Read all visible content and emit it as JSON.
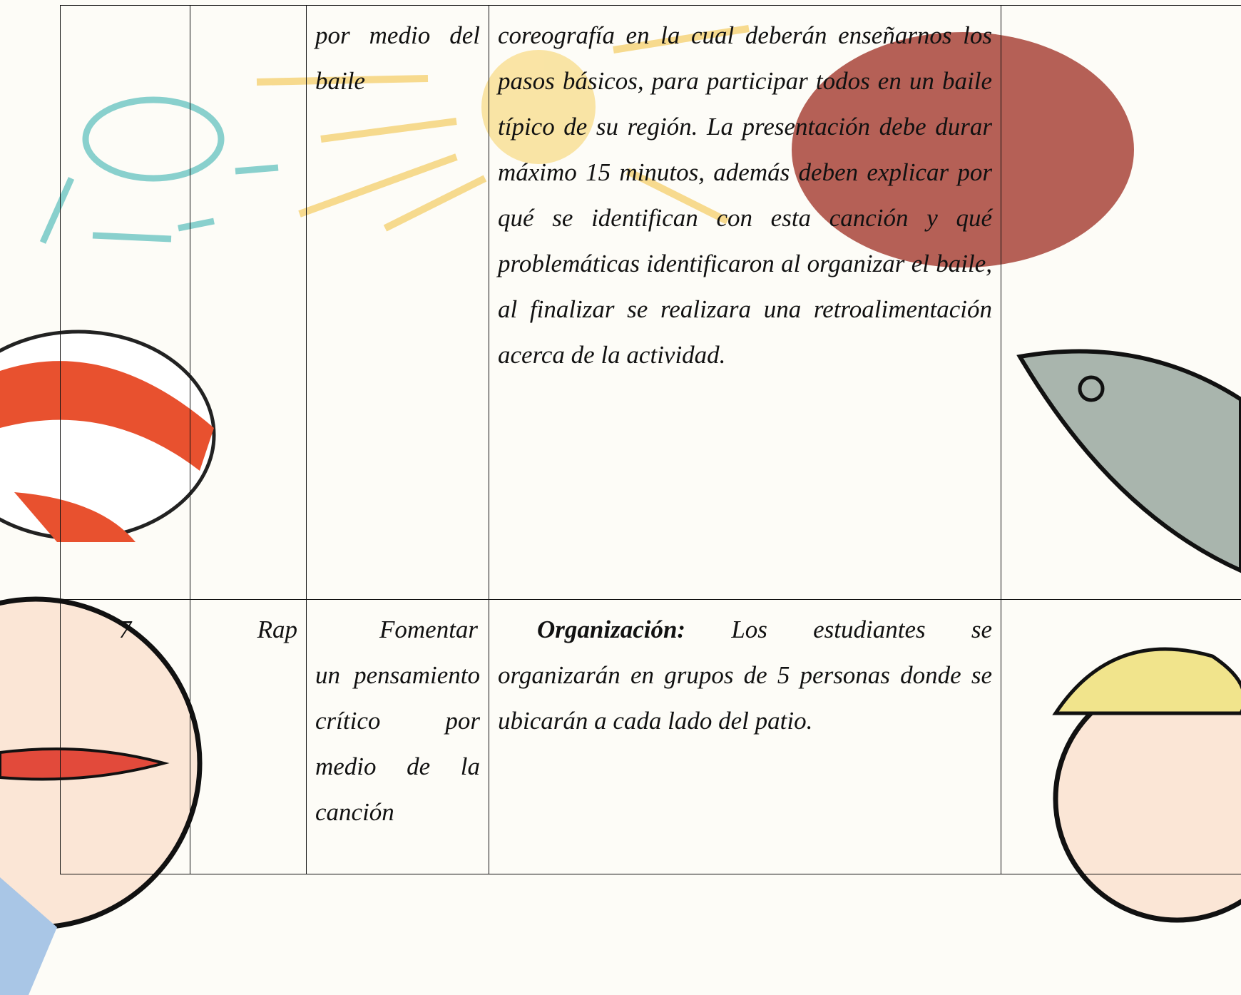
{
  "table": {
    "rows": [
      {
        "objective": "por medio del baile",
        "description": "coreografía en la cual deberán enseñarnos los pasos básicos, para participar todos en un baile típico de su región. La presentación debe durar máximo 15 minutos, además deben explicar por qué se identifican con esta canción y qué problemáticas identificaron al organizar el baile, al finalizar se realizara una retroalimentación acerca de la actividad."
      },
      {
        "number": "7",
        "song": "Rap",
        "objective": "Fomentar un pensamiento crítico por medio de la canción",
        "description_label": "Organización:",
        "description": "Los estudiantes se organizarán en grupos de 5 personas donde se ubicarán a cada lado del patio."
      }
    ]
  }
}
